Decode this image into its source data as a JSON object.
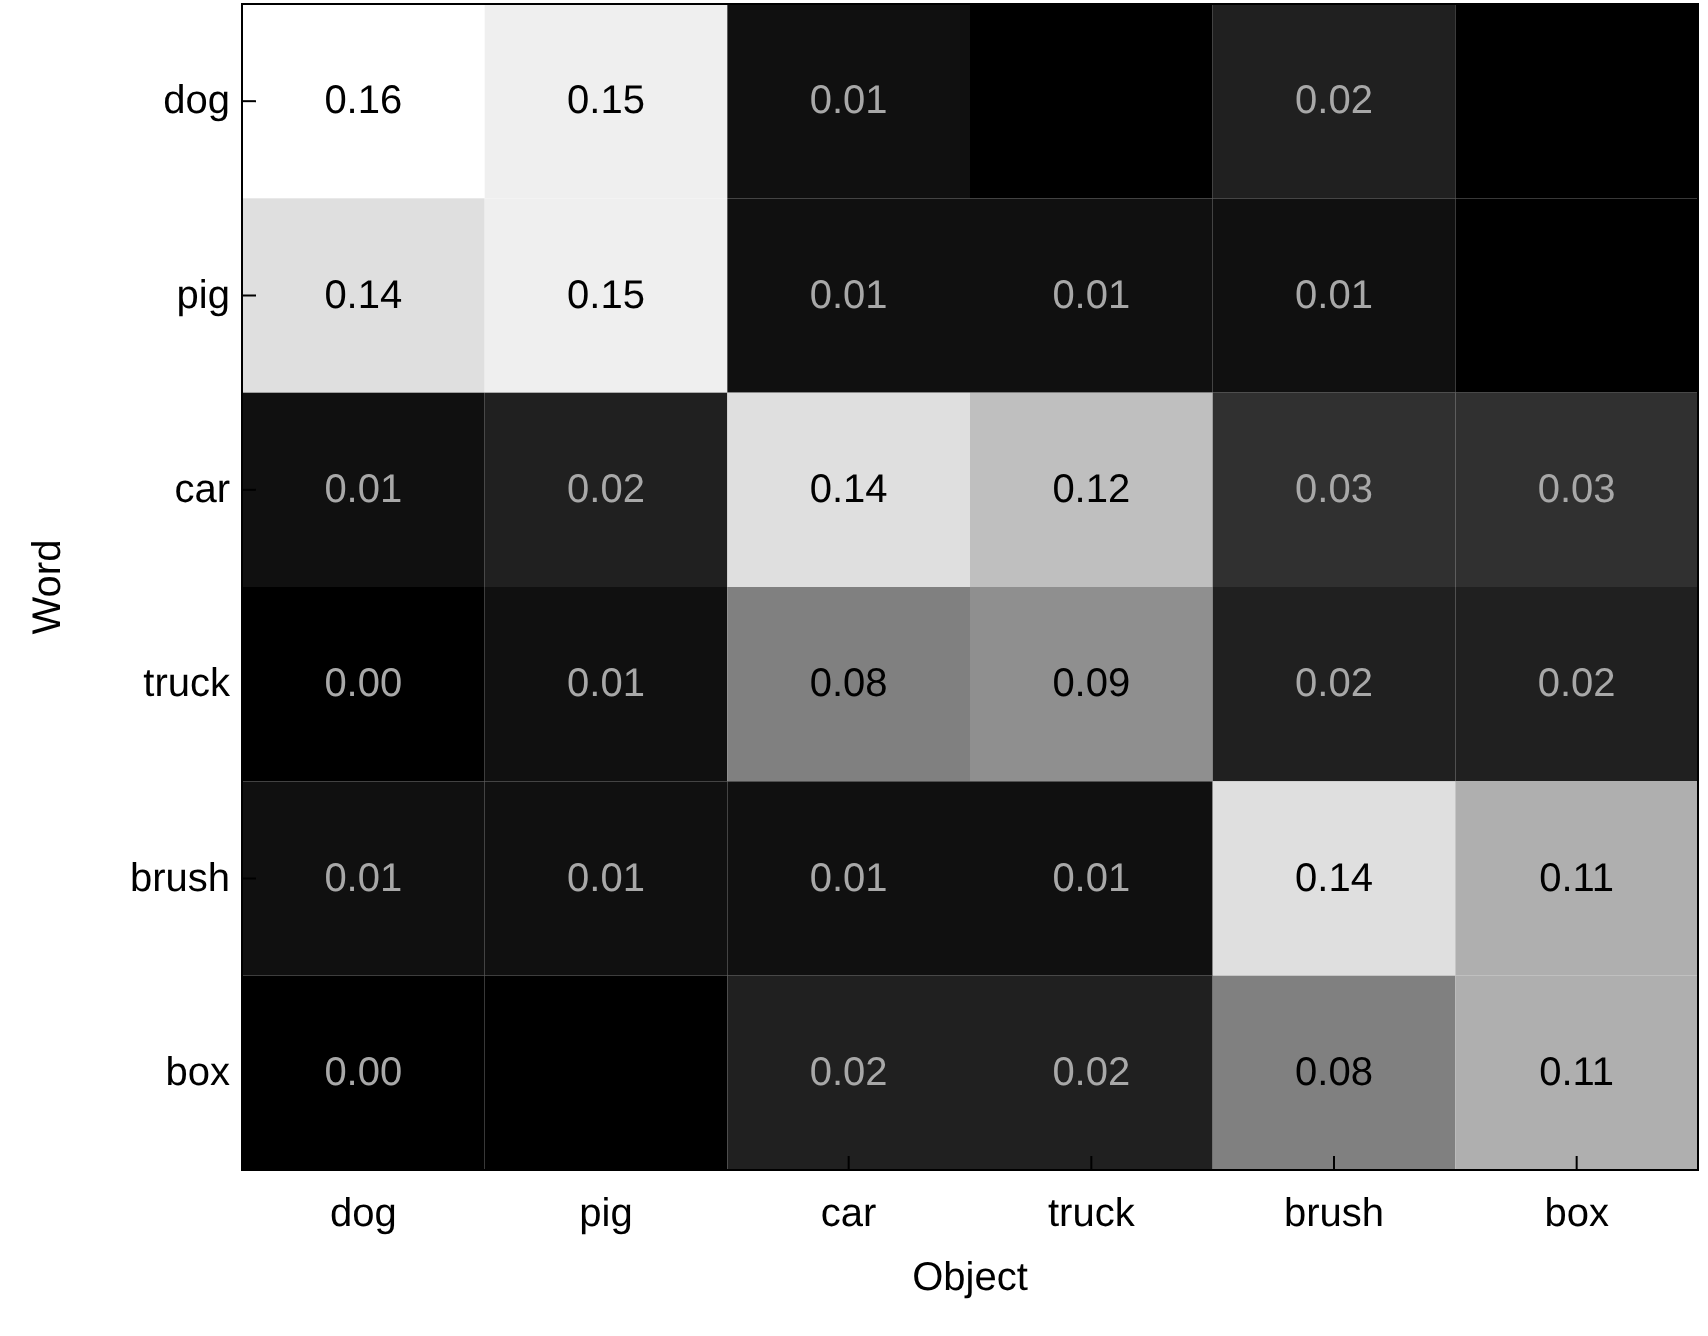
{
  "chart_data": {
    "type": "heatmap",
    "xlabel": "Object",
    "ylabel": "Word",
    "categories": [
      "dog",
      "pig",
      "car",
      "truck",
      "brush",
      "box"
    ],
    "y_categories": [
      "dog",
      "pig",
      "car",
      "truck",
      "brush",
      "box"
    ],
    "cells": [
      [
        0.16,
        0.15,
        0.01,
        null,
        0.02,
        null
      ],
      [
        0.14,
        0.15,
        0.01,
        0.01,
        0.01,
        null
      ],
      [
        0.01,
        0.02,
        0.14,
        0.12,
        0.03,
        0.03
      ],
      [
        0.0,
        0.01,
        0.08,
        0.09,
        0.02,
        0.02
      ],
      [
        0.01,
        0.01,
        0.01,
        0.01,
        0.14,
        0.11
      ],
      [
        0.0,
        null,
        0.02,
        0.02,
        0.08,
        0.11
      ]
    ],
    "cell_labels": [
      [
        "0.16",
        "0.15",
        "0.01",
        null,
        "0.02",
        null
      ],
      [
        "0.14",
        "0.15",
        "0.01",
        "0.01",
        "0.01",
        null
      ],
      [
        "0.01",
        "0.02",
        "0.14",
        "0.12",
        "0.03",
        "0.03"
      ],
      [
        "0.00",
        "0.01",
        "0.08",
        "0.09",
        "0.02",
        "0.02"
      ],
      [
        "0.01",
        "0.01",
        "0.01",
        "0.01",
        "0.14",
        "0.11"
      ],
      [
        "0.00",
        null,
        "0.02",
        "0.02",
        "0.08",
        "0.11"
      ]
    ]
  }
}
